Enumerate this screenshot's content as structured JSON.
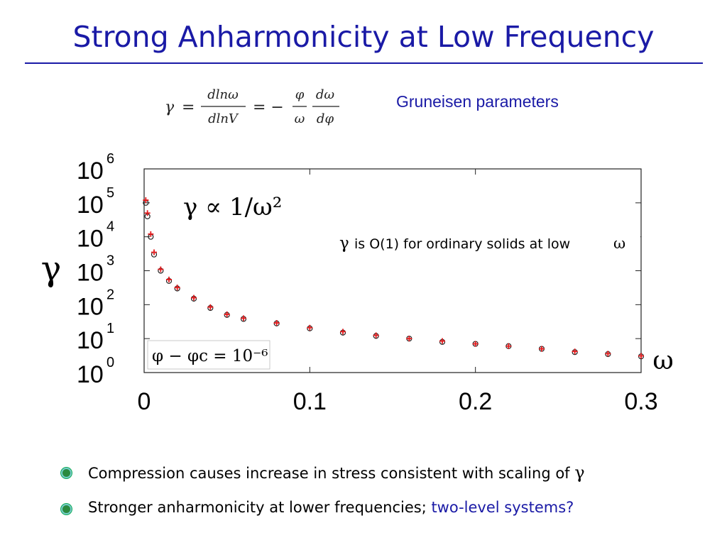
{
  "slide": {
    "title": "Strong Anharmonicity at Low Frequency",
    "equation": {
      "gamma": "γ",
      "eq1": "=",
      "num1": "dlnω",
      "den1": "dlnV",
      "eq2": "= −",
      "num2a": "φ",
      "den2a": "ω",
      "num2b": "dω",
      "den2b": "dφ"
    },
    "gruneisen_label": "Gruneisen parameters",
    "bullets": [
      {
        "text": "Compression causes increase in stress consistent with scaling of",
        "symbol": "γ"
      },
      {
        "text": "Stronger anharmonicity at lower frequencies; ",
        "highlight": "two-level systems?"
      }
    ],
    "colors": {
      "title": "#1a1aa6",
      "highlight": "#1a1aa6",
      "bullet": "#2b8a3e",
      "series_red": "#e31a1c",
      "series_black": "#222222"
    }
  },
  "chart_data": {
    "type": "scatter",
    "y_scale": "log",
    "xlabel": "ω",
    "ylabel": "γ",
    "xlim": [
      0,
      0.3
    ],
    "ylim": [
      1,
      1000000
    ],
    "x_ticks": [
      "0",
      "0.1",
      "0.2",
      "0.3"
    ],
    "y_ticks": [
      {
        "base": "10",
        "exp": "6"
      },
      {
        "base": "10",
        "exp": "5"
      },
      {
        "base": "10",
        "exp": "4"
      },
      {
        "base": "10",
        "exp": "3"
      },
      {
        "base": "10",
        "exp": "2"
      },
      {
        "base": "10",
        "exp": "1"
      },
      {
        "base": "10",
        "exp": "0"
      }
    ],
    "annotations": {
      "scaling": "γ ∝ 1/ω²",
      "ordinary": {
        "gamma": "γ",
        "text": "is O(1) for ordinary solids at low",
        "omega": "ω"
      },
      "condition": "φ − φc = 10⁻⁶"
    },
    "series": [
      {
        "marker": "open-circle",
        "color": "#222222",
        "points": [
          [
            0.001,
            100000
          ],
          [
            0.002,
            40000
          ],
          [
            0.004,
            10000
          ],
          [
            0.006,
            3000
          ],
          [
            0.01,
            1000
          ],
          [
            0.015,
            500
          ],
          [
            0.02,
            300
          ],
          [
            0.03,
            150
          ],
          [
            0.04,
            80
          ],
          [
            0.05,
            50
          ],
          [
            0.06,
            38
          ],
          [
            0.08,
            28
          ],
          [
            0.1,
            20
          ],
          [
            0.12,
            15
          ],
          [
            0.14,
            12
          ],
          [
            0.16,
            10
          ],
          [
            0.18,
            8
          ],
          [
            0.2,
            7
          ],
          [
            0.22,
            6
          ],
          [
            0.24,
            5
          ],
          [
            0.26,
            4
          ],
          [
            0.28,
            3.5
          ],
          [
            0.3,
            3
          ]
        ]
      },
      {
        "marker": "plus",
        "color": "#e31a1c",
        "points": [
          [
            0.001,
            120000
          ],
          [
            0.002,
            50000
          ],
          [
            0.004,
            12000
          ],
          [
            0.006,
            3500
          ],
          [
            0.01,
            1100
          ],
          [
            0.015,
            550
          ],
          [
            0.02,
            320
          ],
          [
            0.03,
            160
          ],
          [
            0.04,
            85
          ],
          [
            0.05,
            52
          ],
          [
            0.06,
            40
          ],
          [
            0.08,
            29
          ],
          [
            0.1,
            21
          ],
          [
            0.12,
            16
          ],
          [
            0.14,
            12.5
          ],
          [
            0.16,
            10
          ],
          [
            0.18,
            8.5
          ],
          [
            0.2,
            7
          ],
          [
            0.22,
            6
          ],
          [
            0.24,
            5
          ],
          [
            0.26,
            4.2
          ],
          [
            0.28,
            3.6
          ],
          [
            0.3,
            3.1
          ]
        ]
      }
    ]
  }
}
